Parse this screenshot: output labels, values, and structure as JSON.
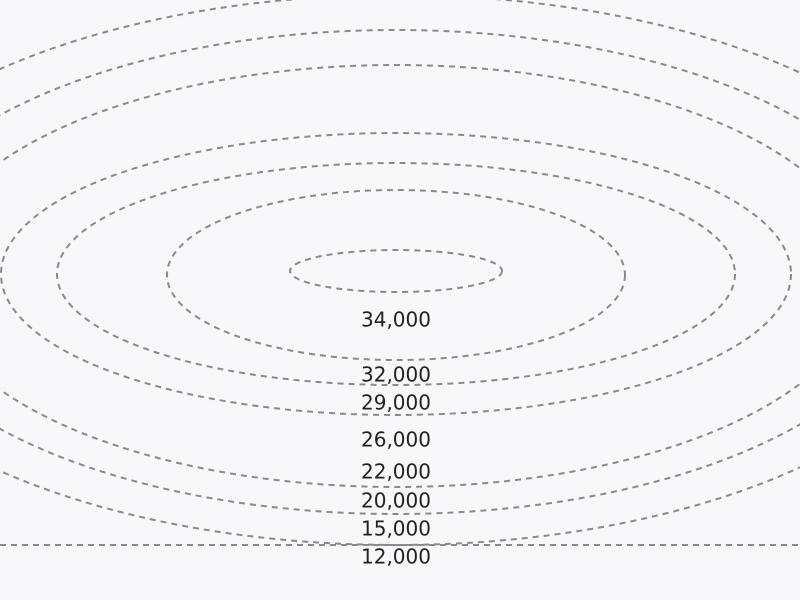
{
  "levels": [
    {
      "label": "34,000"
    },
    {
      "label": "32,000"
    },
    {
      "label": "29,000"
    },
    {
      "label": "26,000"
    },
    {
      "label": "22,000"
    },
    {
      "label": "20,000"
    },
    {
      "label": "15,000"
    },
    {
      "label": "12,000"
    }
  ]
}
